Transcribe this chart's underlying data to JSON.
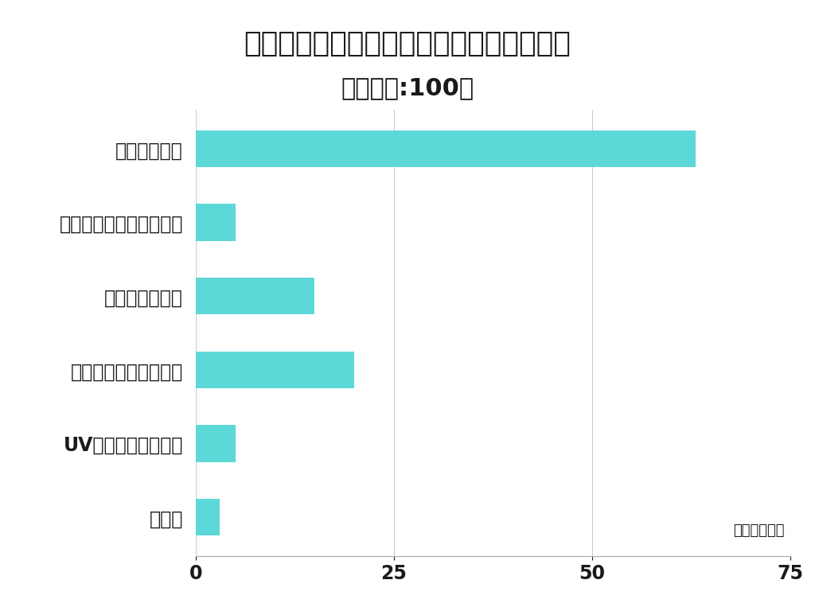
{
  "title_line1": "乾燥肌の方が化粧下地選びで重視すること",
  "title_line2": "（回答数:100）",
  "categories": [
    "保湿成分配合",
    "皮脂崩れ防止効果がある",
    "低刺激・無添加",
    "しっとりとした使用感",
    "UVカット効果がある",
    "色付き"
  ],
  "values": [
    63,
    5,
    15,
    20,
    5,
    3
  ],
  "bar_color": "#5DD8D8",
  "background_color": "#ffffff",
  "xlim": [
    0,
    75
  ],
  "xticks": [
    0,
    25,
    50,
    75
  ],
  "grid_color": "#cccccc",
  "title_fontsize": 26,
  "subtitle_fontsize": 22,
  "label_fontsize": 17,
  "tick_fontsize": 17,
  "watermark_text": "さぶろぐ調べ"
}
